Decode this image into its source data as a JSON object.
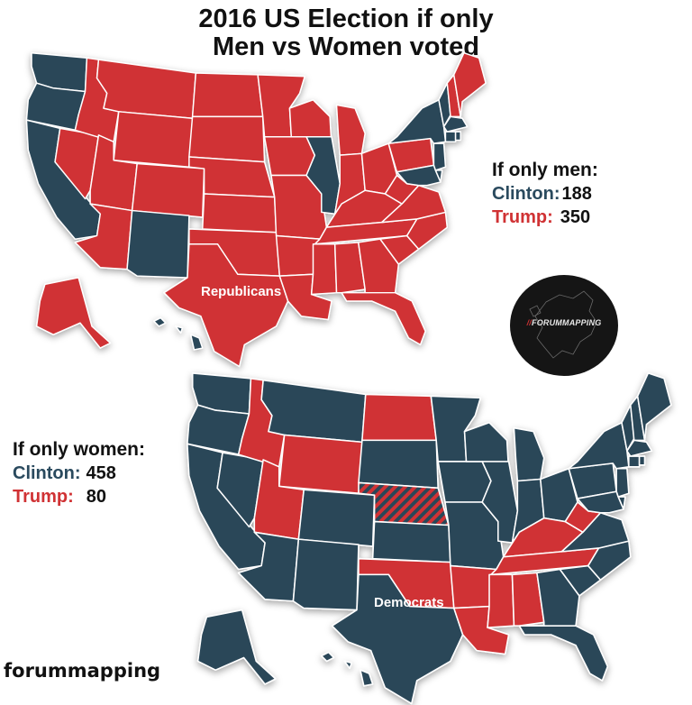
{
  "title": {
    "line1": "2016 US Election if only",
    "line2": "Men vs Women voted"
  },
  "colors": {
    "clinton": "#2a4658",
    "trump": "#d03234",
    "border": "#ffffff"
  },
  "men": {
    "heading": "If only men:",
    "clinton_label": "Clinton:",
    "clinton_votes": "188",
    "trump_label": "Trump:",
    "trump_votes": "350",
    "map_label": "Republicans",
    "clinton_states": [
      "WA",
      "OR",
      "CA",
      "NM",
      "IL",
      "NY",
      "VT",
      "MA",
      "CT",
      "RI",
      "NJ",
      "DE",
      "MD",
      "HI"
    ],
    "trump_states": [
      "ID",
      "MT",
      "WY",
      "NV",
      "UT",
      "AZ",
      "CO",
      "ND",
      "SD",
      "NE",
      "KS",
      "OK",
      "TX",
      "MN",
      "IA",
      "MO",
      "AR",
      "LA",
      "WI",
      "MI",
      "IN",
      "OH",
      "KY",
      "TN",
      "MS",
      "AL",
      "GA",
      "FL",
      "SC",
      "NC",
      "VA",
      "WV",
      "PA",
      "NH",
      "ME",
      "AK"
    ]
  },
  "women": {
    "heading": "If only women:",
    "clinton_label": "Clinton:",
    "clinton_votes": "458",
    "trump_label": "Trump:",
    "trump_votes": "80",
    "map_label": "Democrats",
    "trump_states": [
      "ID",
      "WY",
      "UT",
      "ND",
      "OK",
      "AR",
      "LA",
      "MS",
      "AL",
      "TN",
      "KY",
      "WV"
    ],
    "split_states": [
      "NE"
    ]
  },
  "badge": {
    "slashes": "//",
    "text": "FORUMMAPPING"
  },
  "watermark": "forummapping",
  "chart_data": {
    "type": "map",
    "title": "2016 US Election if only Men vs Women voted",
    "maps": [
      {
        "name": "If only men",
        "winner_label": "Republicans",
        "results": {
          "Clinton": 188,
          "Trump": 350
        }
      },
      {
        "name": "If only women",
        "winner_label": "Democrats",
        "results": {
          "Clinton": 458,
          "Trump": 80
        },
        "note": "Nebraska split (hatched)"
      }
    ],
    "legend": {
      "Clinton": "#2a4658",
      "Trump": "#d03234"
    }
  }
}
